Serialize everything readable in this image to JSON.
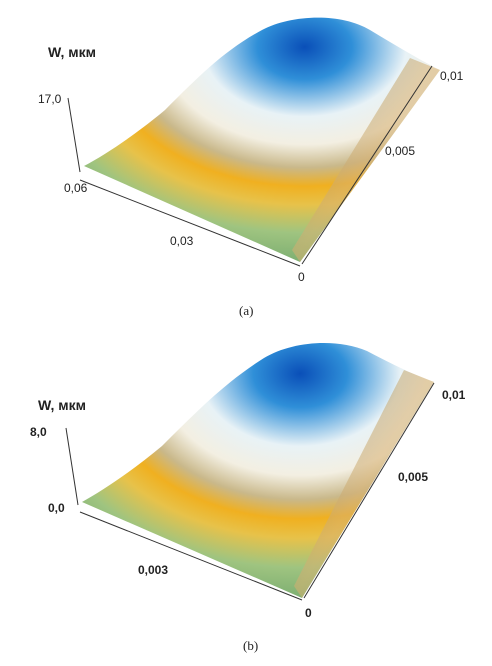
{
  "panels": [
    {
      "z_label": "W, мкм",
      "z_ticks": [
        "17,0"
      ],
      "x_ticks": [
        "0,06",
        "0,03",
        "0"
      ],
      "y_ticks": [
        "0,005",
        "0,01"
      ],
      "caption": "(a)"
    },
    {
      "z_label": "W, мкм",
      "z_ticks": [
        "8,0",
        "0,0"
      ],
      "x_ticks": [
        "0,003",
        "0"
      ],
      "y_ticks": [
        "0,005",
        "0,01"
      ],
      "caption": "(b)"
    }
  ]
}
